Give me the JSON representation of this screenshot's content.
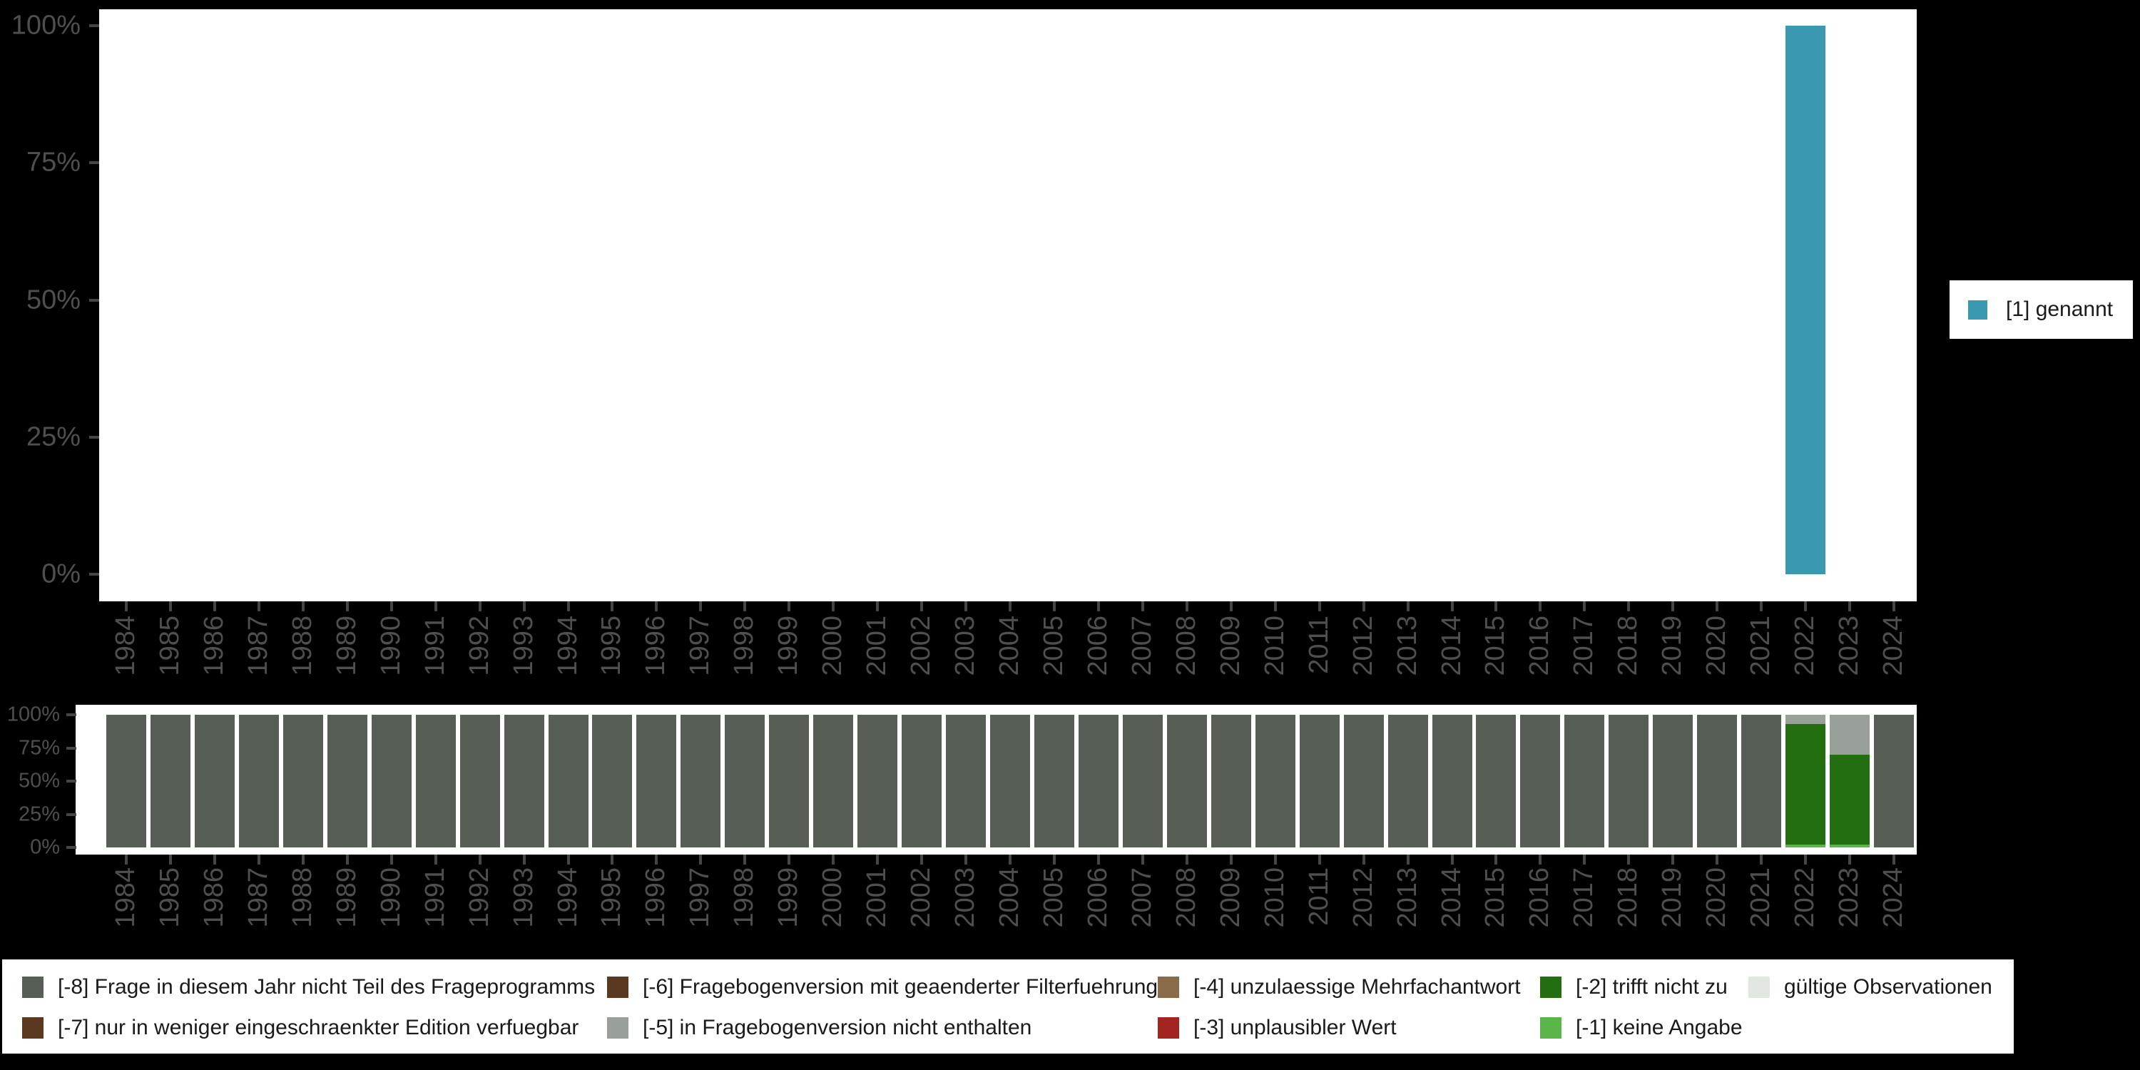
{
  "colors": {
    "background": "#000000",
    "plot_bg": "#ffffff",
    "axis_text": "#4f4f4f",
    "tick": "#454545",
    "legend_text": "#1a1a1a",
    "genannt": "#3a99b0",
    "-8": "#565e56",
    "-7": "#5a3920",
    "-6": "#5a3920",
    "-5": "#99a099",
    "-4": "#8a6b4a",
    "-3": "#a32421",
    "-2": "#236e11",
    "-1": "#5bb64a",
    "valid": "#e3e7e1"
  },
  "years": [
    1984,
    1985,
    1986,
    1987,
    1988,
    1989,
    1990,
    1991,
    1992,
    1993,
    1994,
    1995,
    1996,
    1997,
    1998,
    1999,
    2000,
    2001,
    2002,
    2003,
    2004,
    2005,
    2006,
    2007,
    2008,
    2009,
    2010,
    2011,
    2012,
    2013,
    2014,
    2015,
    2016,
    2017,
    2018,
    2019,
    2020,
    2021,
    2022,
    2023,
    2024
  ],
  "top_chart": {
    "y_tick_labels": [
      "100%",
      "75%",
      "50%",
      "25%",
      "0%"
    ],
    "legend": {
      "label": "[1] genannt",
      "color_key": "genannt"
    },
    "bars": {
      "2022": 100
    }
  },
  "bottom_chart": {
    "y_tick_labels": [
      "100%",
      "75%",
      "50%",
      "25%",
      "0%"
    ],
    "stacks": {
      "default": [
        {
          "key": "-8",
          "pct": 100
        }
      ],
      "2022": [
        {
          "key": "-1",
          "pct": 2
        },
        {
          "key": "-2",
          "pct": 91
        },
        {
          "key": "-5",
          "pct": 7
        }
      ],
      "2023": [
        {
          "key": "-1",
          "pct": 2
        },
        {
          "key": "-2",
          "pct": 68
        },
        {
          "key": "-5",
          "pct": 30
        }
      ]
    }
  },
  "missing_legend": {
    "items": [
      {
        "key": "-8",
        "label": "[-8] Frage in diesem Jahr nicht Teil des Frageprogramms",
        "col": 0,
        "row": 0
      },
      {
        "key": "-7",
        "label": "[-7] nur in weniger eingeschraenkter Edition verfuegbar",
        "col": 0,
        "row": 1
      },
      {
        "key": "-6",
        "label": "[-6] Fragebogenversion mit geaenderter Filterfuehrung",
        "col": 1,
        "row": 0
      },
      {
        "key": "-5",
        "label": "[-5] in Fragebogenversion nicht enthalten",
        "col": 1,
        "row": 1
      },
      {
        "key": "-4",
        "label": "[-4] unzulaessige Mehrfachantwort",
        "col": 2,
        "row": 0
      },
      {
        "key": "-3",
        "label": "[-3] unplausibler Wert",
        "col": 2,
        "row": 1
      },
      {
        "key": "-2",
        "label": "[-2] trifft nicht zu",
        "col": 3,
        "row": 0
      },
      {
        "key": "-1",
        "label": "[-1] keine Angabe",
        "col": 3,
        "row": 1
      },
      {
        "key": "valid",
        "label": "gültige Observationen",
        "col": 4,
        "row": 0
      }
    ]
  },
  "chart_data": [
    {
      "type": "bar",
      "title": "",
      "categories": [
        1984,
        1985,
        1986,
        1987,
        1988,
        1989,
        1990,
        1991,
        1992,
        1993,
        1994,
        1995,
        1996,
        1997,
        1998,
        1999,
        2000,
        2001,
        2002,
        2003,
        2004,
        2005,
        2006,
        2007,
        2008,
        2009,
        2010,
        2011,
        2012,
        2013,
        2014,
        2015,
        2016,
        2017,
        2018,
        2019,
        2020,
        2021,
        2022,
        2023,
        2024
      ],
      "series": [
        {
          "name": "[1] genannt",
          "color": "#3a99b0",
          "values": [
            null,
            null,
            null,
            null,
            null,
            null,
            null,
            null,
            null,
            null,
            null,
            null,
            null,
            null,
            null,
            null,
            null,
            null,
            null,
            null,
            null,
            null,
            null,
            null,
            null,
            null,
            null,
            null,
            null,
            null,
            null,
            null,
            null,
            null,
            null,
            null,
            null,
            null,
            100,
            null,
            null
          ]
        }
      ],
      "xlabel": "",
      "ylabel": "",
      "ylim": [
        0,
        100
      ],
      "y_ticks": [
        "0%",
        "25%",
        "50%",
        "75%",
        "100%"
      ],
      "grid": false,
      "legend_position": "right"
    },
    {
      "type": "bar",
      "title": "",
      "categories": [
        1984,
        1985,
        1986,
        1987,
        1988,
        1989,
        1990,
        1991,
        1992,
        1993,
        1994,
        1995,
        1996,
        1997,
        1998,
        1999,
        2000,
        2001,
        2002,
        2003,
        2004,
        2005,
        2006,
        2007,
        2008,
        2009,
        2010,
        2011,
        2012,
        2013,
        2014,
        2015,
        2016,
        2017,
        2018,
        2019,
        2020,
        2021,
        2022,
        2023,
        2024
      ],
      "series": [
        {
          "name": "[-8] Frage in diesem Jahr nicht Teil des Frageprogramms",
          "color": "#565e56",
          "values": [
            100,
            100,
            100,
            100,
            100,
            100,
            100,
            100,
            100,
            100,
            100,
            100,
            100,
            100,
            100,
            100,
            100,
            100,
            100,
            100,
            100,
            100,
            100,
            100,
            100,
            100,
            100,
            100,
            100,
            100,
            100,
            100,
            100,
            100,
            100,
            100,
            100,
            100,
            0,
            0,
            100
          ]
        },
        {
          "name": "[-5] in Fragebogenversion nicht enthalten",
          "color": "#99a099",
          "values": [
            0,
            0,
            0,
            0,
            0,
            0,
            0,
            0,
            0,
            0,
            0,
            0,
            0,
            0,
            0,
            0,
            0,
            0,
            0,
            0,
            0,
            0,
            0,
            0,
            0,
            0,
            0,
            0,
            0,
            0,
            0,
            0,
            0,
            0,
            0,
            0,
            0,
            0,
            7,
            30,
            0
          ]
        },
        {
          "name": "[-2] trifft nicht zu",
          "color": "#236e11",
          "values": [
            0,
            0,
            0,
            0,
            0,
            0,
            0,
            0,
            0,
            0,
            0,
            0,
            0,
            0,
            0,
            0,
            0,
            0,
            0,
            0,
            0,
            0,
            0,
            0,
            0,
            0,
            0,
            0,
            0,
            0,
            0,
            0,
            0,
            0,
            0,
            0,
            0,
            0,
            91,
            68,
            0
          ]
        },
        {
          "name": "[-1] keine Angabe",
          "color": "#5bb64a",
          "values": [
            0,
            0,
            0,
            0,
            0,
            0,
            0,
            0,
            0,
            0,
            0,
            0,
            0,
            0,
            0,
            0,
            0,
            0,
            0,
            0,
            0,
            0,
            0,
            0,
            0,
            0,
            0,
            0,
            0,
            0,
            0,
            0,
            0,
            0,
            0,
            0,
            0,
            0,
            2,
            2,
            0
          ]
        }
      ],
      "xlabel": "",
      "ylabel": "",
      "ylim": [
        0,
        100
      ],
      "y_ticks": [
        "0%",
        "25%",
        "50%",
        "75%",
        "100%"
      ],
      "grid": false,
      "stacked": true
    }
  ]
}
